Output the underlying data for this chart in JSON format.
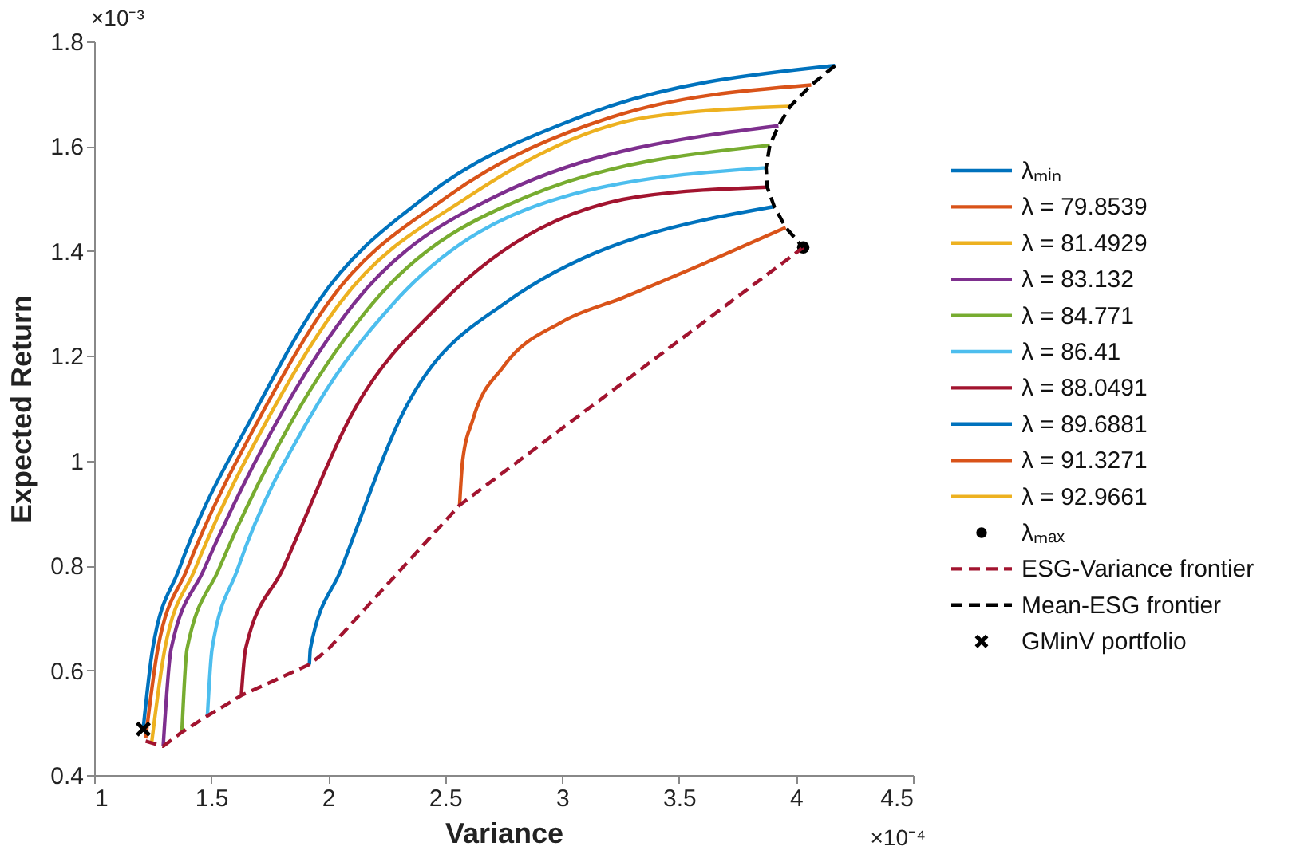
{
  "chart_data": {
    "type": "line",
    "xlabel": "Variance",
    "ylabel": "Expected Return",
    "xlim": [
      1,
      4.5
    ],
    "ylim": [
      0.4,
      1.8
    ],
    "xticks": [
      1,
      1.5,
      2,
      2.5,
      3,
      3.5,
      4,
      4.5
    ],
    "yticks": [
      0.4,
      0.6,
      0.8,
      1,
      1.2,
      1.4,
      1.6,
      1.8
    ],
    "grid": false,
    "legend": "right",
    "annotations": [
      "×10⁻³",
      "×10⁻⁴"
    ],
    "series": [
      {
        "name": "λₘᵢₙ",
        "color": "#0072bd",
        "line_style": "solid",
        "x": [
          1.21,
          1.25,
          1.363,
          1.693,
          1.954,
          2.417,
          3.078,
          4.167
        ],
        "values": [
          0.49,
          0.641,
          0.793,
          1.098,
          1.301,
          1.504,
          1.656,
          1.754
        ]
      },
      {
        "name": "λ = 79.8539",
        "color": "#d95319",
        "line_style": "solid",
        "x": [
          1.22,
          1.272,
          1.397,
          1.727,
          2.0,
          2.51,
          3.214,
          4.065
        ],
        "values": [
          0.47,
          0.641,
          0.793,
          1.098,
          1.301,
          1.504,
          1.656,
          1.717
        ]
      },
      {
        "name": "λ = 81.4929",
        "color": "#edb120",
        "line_style": "solid",
        "x": [
          1.245,
          1.302,
          1.431,
          1.765,
          2.051,
          2.6,
          3.373,
          3.975
        ],
        "values": [
          0.459,
          0.641,
          0.793,
          1.098,
          1.301,
          1.504,
          1.656,
          1.676
        ]
      },
      {
        "name": "λ = 83.132",
        "color": "#7e2f8e",
        "line_style": "solid",
        "x": [
          1.295,
          1.329,
          1.47,
          1.811,
          2.113,
          2.714,
          3.925
        ],
        "values": [
          0.455,
          0.641,
          0.793,
          1.098,
          1.301,
          1.504,
          1.639
        ]
      },
      {
        "name": "λ = 84.771",
        "color": "#77ac30",
        "line_style": "solid",
        "x": [
          1.375,
          1.397,
          1.533,
          1.874,
          2.192,
          2.851,
          3.888
        ],
        "values": [
          0.482,
          0.641,
          0.793,
          1.098,
          1.301,
          1.504,
          1.602
        ]
      },
      {
        "name": "λ = 86.41",
        "color": "#4dbeee",
        "line_style": "solid",
        "x": [
          1.484,
          1.504,
          1.613,
          1.942,
          2.281,
          3.01,
          3.872
        ],
        "values": [
          0.513,
          0.641,
          0.793,
          1.098,
          1.301,
          1.504,
          1.559
        ]
      },
      {
        "name": "λ = 88.0491",
        "color": "#a2142f",
        "line_style": "solid",
        "x": [
          1.629,
          1.647,
          1.806,
          2.113,
          2.485,
          3.33,
          3.877
        ],
        "values": [
          0.552,
          0.641,
          0.793,
          1.098,
          1.301,
          1.504,
          1.522
        ]
      },
      {
        "name": "λ = 89.6881",
        "color": "#0072bd",
        "line_style": "solid",
        "x": [
          1.92,
          1.924,
          2.056,
          2.328,
          2.757,
          3.907
        ],
        "values": [
          0.611,
          0.641,
          0.793,
          1.098,
          1.301,
          1.485
        ]
      },
      {
        "name": "λ = 91.3271",
        "color": "#d95319",
        "line_style": "solid",
        "x": [
          2.562,
          2.575,
          2.62,
          2.75,
          3.0,
          3.26,
          3.6,
          3.956
        ],
        "values": [
          0.915,
          1.0,
          1.08,
          1.18,
          1.265,
          1.311,
          1.375,
          1.445
        ]
      },
      {
        "name": "λ = 92.9661",
        "color": "#edb120",
        "line_style": "solid"
      },
      {
        "name": "λₘₐₓ",
        "type": "scatter",
        "marker": "circle",
        "color": "#000000",
        "x": [
          4.031
        ],
        "values": [
          1.407
        ]
      },
      {
        "name": "ESG-Variance frontier",
        "color": "#a2142f",
        "line_style": "dashed",
        "x": [
          1.22,
          1.295,
          1.375,
          1.484,
          1.629,
          1.92,
          2.0,
          2.562,
          4.031
        ],
        "values": [
          0.465,
          0.455,
          0.482,
          0.513,
          0.552,
          0.611,
          0.64,
          0.915,
          1.407
        ]
      },
      {
        "name": "Mean-ESG frontier",
        "color": "#000000",
        "line_style": "dashed",
        "x": [
          4.167,
          4.065,
          3.975,
          3.925,
          3.888,
          3.872,
          3.877,
          3.907,
          3.956,
          4.031
        ],
        "values": [
          1.754,
          1.717,
          1.676,
          1.639,
          1.602,
          1.559,
          1.522,
          1.485,
          1.445,
          1.407
        ]
      },
      {
        "name": "GMinV portfolio",
        "type": "scatter",
        "marker": "cross",
        "color": "#000000",
        "x": [
          1.21
        ],
        "values": [
          0.488
        ]
      }
    ]
  }
}
